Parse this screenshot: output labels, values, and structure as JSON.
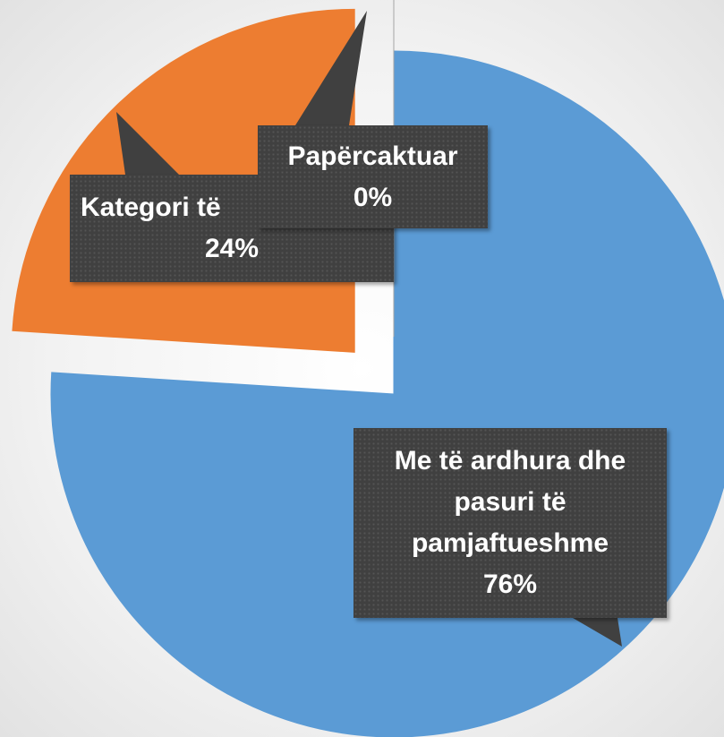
{
  "chart_data": {
    "type": "pie",
    "categories": [
      "Me të ardhura dhe pasuri të pamjaftueshme",
      "Kategori të",
      "Papërcaktuar"
    ],
    "values": [
      76,
      24,
      0
    ],
    "value_labels": [
      "76%",
      "24%",
      "0%"
    ],
    "colors": [
      "#5b9bd5",
      "#ed7d31",
      "#a5a5a5"
    ]
  }
}
